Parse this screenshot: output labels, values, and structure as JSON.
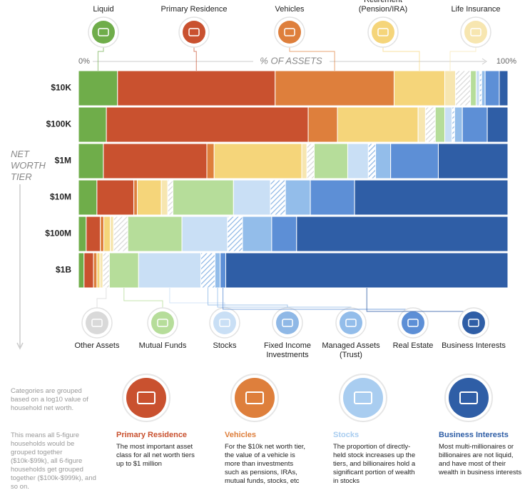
{
  "chart_data": {
    "type": "stacked_bar_horizontal",
    "x_label": "% OF ASSETS",
    "y_label": "NET WORTH TIER",
    "categories": [
      "$10K",
      "$100K",
      "$1M",
      "$10M",
      "$100M",
      "$1B"
    ],
    "xlim": [
      0,
      100
    ],
    "xticks": [
      {
        "value": 0,
        "label": "0%"
      },
      {
        "value": 100,
        "label": "100%"
      }
    ],
    "series": [
      {
        "name": "Liquid",
        "color": "#6fad4a",
        "legend": "top",
        "values": [
          9.1,
          6.5,
          5.8,
          4.3,
          1.8,
          1.3
        ]
      },
      {
        "name": "Primary Residence",
        "color": "#c9512f",
        "legend": "top",
        "values": [
          36.7,
          47.0,
          24.1,
          8.6,
          3.3,
          2.2
        ]
      },
      {
        "name": "Vehicles",
        "color": "#de7f3c",
        "legend": "top",
        "values": [
          27.7,
          6.8,
          1.7,
          0.8,
          0.8,
          0.8
        ]
      },
      {
        "name": "Retirement (Pension/IRA)",
        "color": "#f5d57a",
        "legend": "top",
        "values": [
          11.8,
          18.8,
          20.4,
          5.6,
          1.5,
          0.7
        ]
      },
      {
        "name": "Life Insurance",
        "color": "#f7e6b0",
        "legend": "top",
        "values": [
          2.5,
          1.7,
          1.2,
          1.5,
          0.8,
          0.7
        ]
      },
      {
        "name": "Other Assets",
        "color": "#d9d9d9",
        "hatched": true,
        "legend": "bottom",
        "values": [
          3.5,
          2.3,
          1.7,
          1.2,
          3.3,
          1.5
        ]
      },
      {
        "name": "Mutual Funds",
        "color": "#b6dd9a",
        "legend": "bottom",
        "values": [
          1.3,
          2.2,
          7.8,
          14.1,
          12.6,
          6.8
        ]
      },
      {
        "name": "Stocks",
        "color": "#c9dff5",
        "legend": "bottom",
        "values": [
          0.8,
          1.7,
          4.8,
          8.6,
          10.6,
          14.5
        ]
      },
      {
        "name": "Fixed Income Investments",
        "color": "#8fb8e6",
        "hatched": true,
        "legend": "bottom",
        "values": [
          0.5,
          0.6,
          1.7,
          3.5,
          3.5,
          3.3
        ]
      },
      {
        "name": "Managed Assets (Trust)",
        "color": "#93bdea",
        "legend": "bottom",
        "values": [
          0.8,
          1.8,
          3.5,
          5.8,
          6.8,
          1.2
        ]
      },
      {
        "name": "Real Estate",
        "color": "#5d8fd6",
        "legend": "bottom",
        "values": [
          3.3,
          5.8,
          11.1,
          10.3,
          5.8,
          1.3
        ]
      },
      {
        "name": "Business Interests",
        "color": "#2f5ea6",
        "legend": "bottom",
        "values": [
          2.0,
          4.8,
          16.2,
          35.7,
          49.2,
          65.7
        ]
      }
    ]
  },
  "notes": [
    "Categories are grouped based on a log10 value of household net worth.",
    "This means all 5-figure households would be grouped together ($10k-$99k), all 6-figure households get grouped together ($100k-$999k), and so on."
  ],
  "cards": [
    {
      "title": "Primary Residence",
      "color": "#c9512f",
      "text": "The most important asset class for all net worth tiers up to $1 million"
    },
    {
      "title": "Vehicles",
      "color": "#de7f3c",
      "text": "For the $10k net worth tier, the value of a vehicle is more than investments such as pensions, IRAs, mutual funds, stocks, etc"
    },
    {
      "title": "Stocks",
      "color": "#a9cdf0",
      "text": "The proportion of directly-held stock increases up the tiers, and billionaires hold a significant portion of wealth in stocks"
    },
    {
      "title": "Business Interests",
      "color": "#2f5ea6",
      "text": "Most multi-millionaires or billionaires are not liquid, and have most of their wealth in business interests"
    }
  ]
}
